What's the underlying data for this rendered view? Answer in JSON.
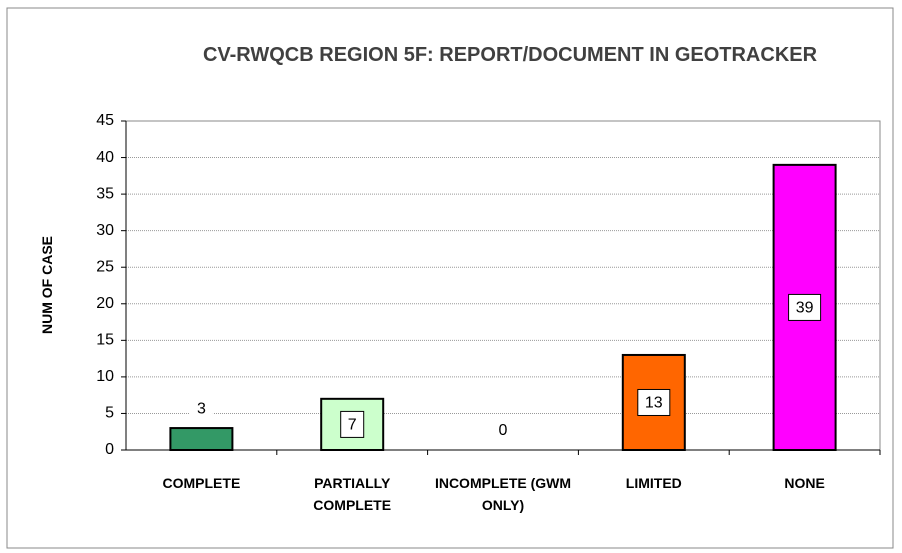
{
  "chart_data": {
    "type": "bar",
    "title": "CV-RWQCB REGION 5F: REPORT/DOCUMENT IN GEOTRACKER",
    "y_label": "NUM OF CASE",
    "categories": [
      "COMPLETE",
      "PARTIALLY COMPLETE",
      "INCOMPLETE (GWM ONLY)",
      "LIMITED",
      "NONE"
    ],
    "values": [
      3,
      7,
      0,
      13,
      39
    ],
    "colors": [
      "#339966",
      "#ccffcc",
      "#ffffff",
      "#ff6600",
      "#ff00ff"
    ],
    "ylim": [
      0,
      45
    ],
    "yticks": [
      0,
      5,
      10,
      15,
      20,
      25,
      30,
      35,
      40,
      45
    ],
    "grid": true
  }
}
